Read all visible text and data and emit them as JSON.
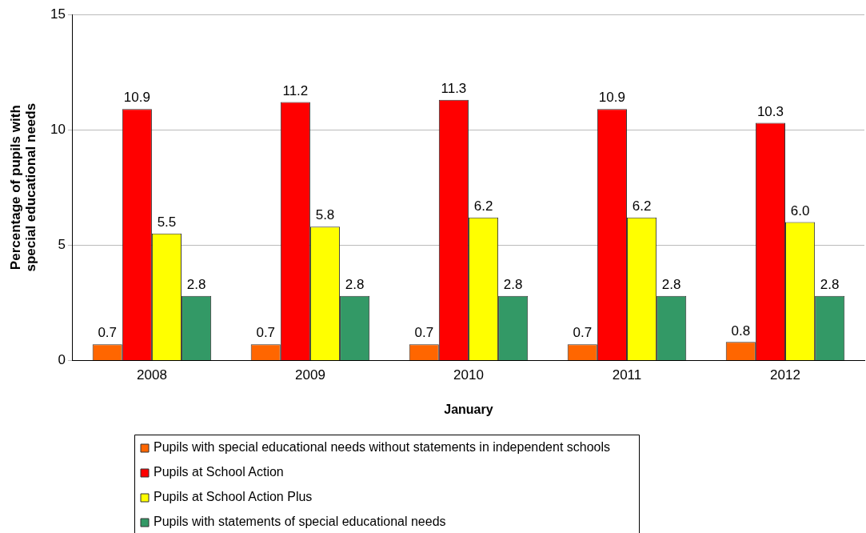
{
  "chart_data": {
    "type": "bar",
    "xlabel": "January",
    "ylabel": "Percentage of pupils with special educational needs",
    "categories": [
      "2008",
      "2009",
      "2010",
      "2011",
      "2012"
    ],
    "series": [
      {
        "name": "Pupils with special educational needs without statements in independent schools",
        "color": "#ff6600",
        "values": [
          0.7,
          0.7,
          0.7,
          0.7,
          0.8
        ],
        "value_labels": [
          "0.7",
          "0.7",
          "0.7",
          "0.7",
          "0.8"
        ]
      },
      {
        "name": "Pupils at School Action",
        "color": "#ff0000",
        "values": [
          10.9,
          11.2,
          11.3,
          10.9,
          10.3
        ],
        "value_labels": [
          "10.9",
          "11.2",
          "11.3",
          "10.9",
          "10.3"
        ]
      },
      {
        "name": "Pupils at School Action Plus",
        "color": "#ffff00",
        "values": [
          5.5,
          5.8,
          6.2,
          6.2,
          6.0
        ],
        "value_labels": [
          "5.5",
          "5.8",
          "6.2",
          "6.2",
          "6.0"
        ]
      },
      {
        "name": "Pupils with statements of special educational needs",
        "color": "#339966",
        "values": [
          2.8,
          2.8,
          2.8,
          2.8,
          2.8
        ],
        "value_labels": [
          "2.8",
          "2.8",
          "2.8",
          "2.8",
          "2.8"
        ]
      }
    ],
    "ylim": [
      0,
      15
    ],
    "yticks": [
      0,
      5,
      10,
      15
    ],
    "grid": "y",
    "legend": "bottom"
  }
}
